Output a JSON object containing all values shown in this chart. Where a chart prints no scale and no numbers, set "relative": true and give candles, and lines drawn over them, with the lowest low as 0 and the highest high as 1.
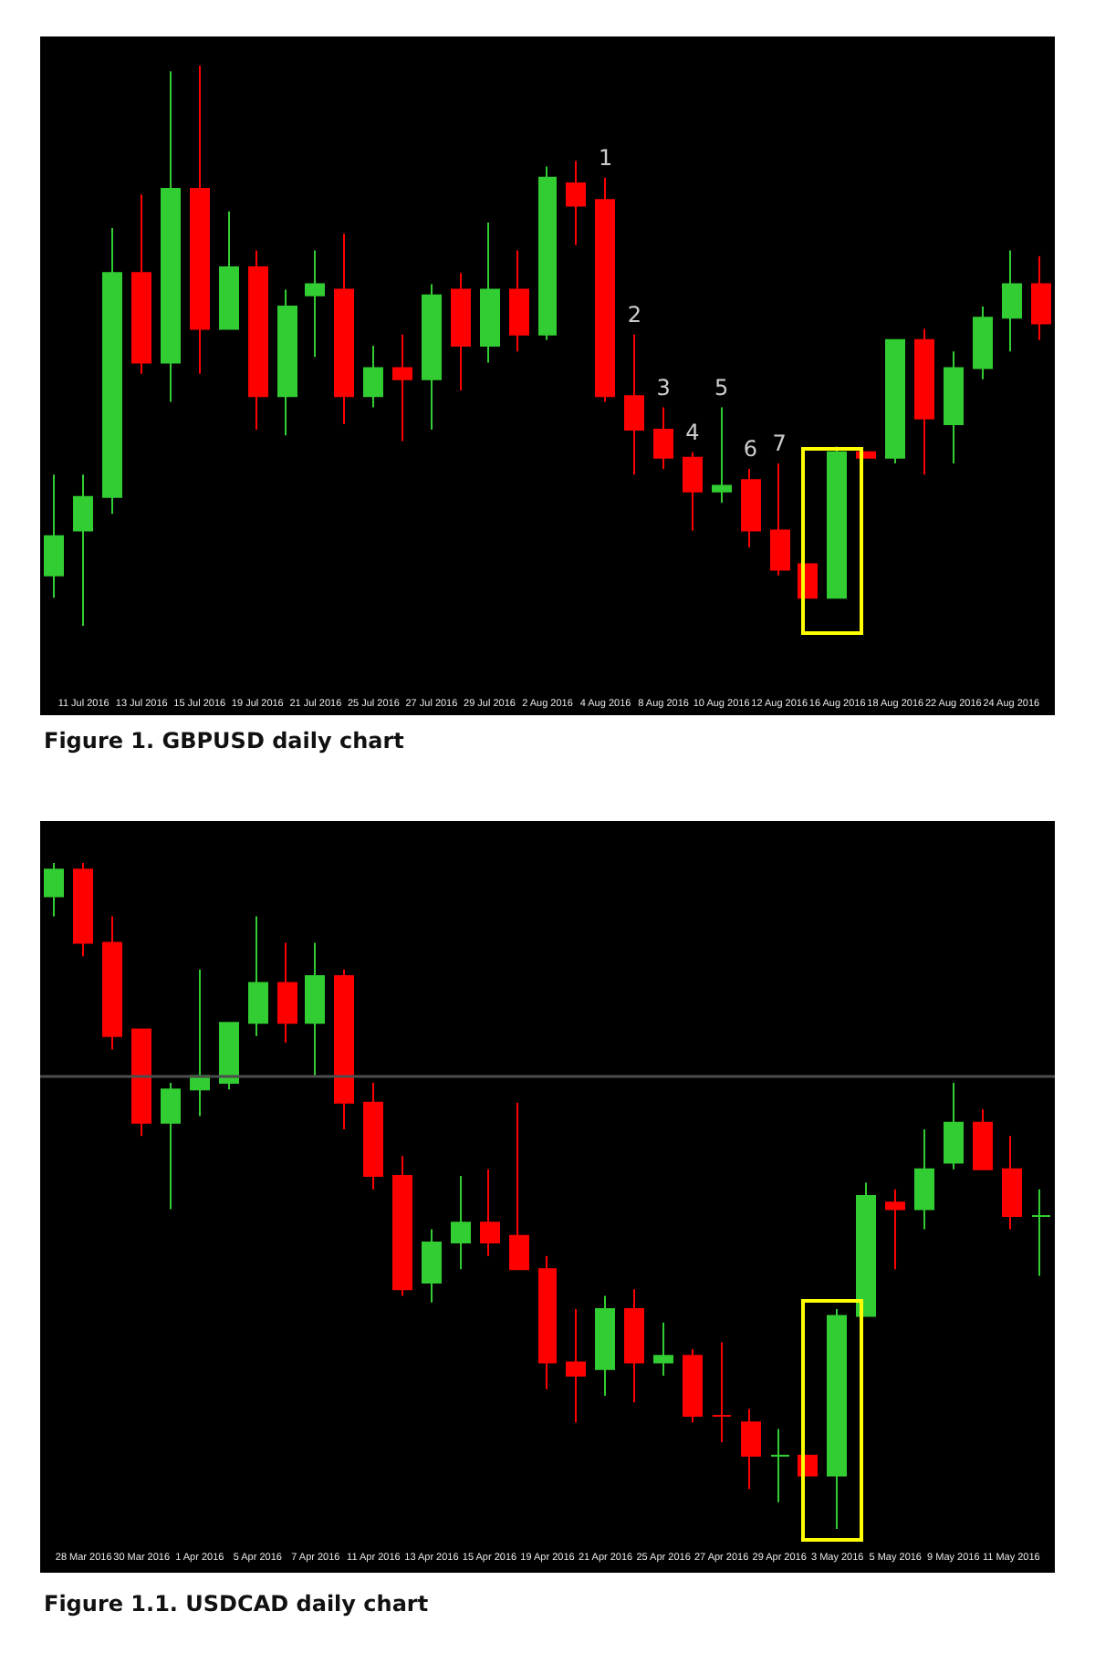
{
  "chart_data": [
    {
      "type": "candlestick",
      "title": "Figure 1. GBPUSD daily chart",
      "relative": true,
      "categories": [
        null,
        "11 Jul 2016",
        null,
        "13 Jul 2016",
        null,
        "15 Jul 2016",
        null,
        "19 Jul 2016",
        null,
        "21 Jul 2016",
        null,
        "25 Jul 2016",
        null,
        "27 Jul 2016",
        null,
        "29 Jul 2016",
        null,
        "2 Aug 2016",
        null,
        "4 Aug 2016",
        null,
        "8 Aug 2016",
        null,
        "10 Aug 2016",
        null,
        "12 Aug 2016",
        null,
        "16 Aug 2016",
        null,
        "18 Aug 2016",
        null,
        "22 Aug 2016",
        null,
        "24 Aug 2016",
        null
      ],
      "ohlc": [
        [
          0.09,
          0.27,
          0.05,
          0.16
        ],
        [
          0.17,
          0.27,
          0,
          0.23
        ],
        [
          0.23,
          0.71,
          0.2,
          0.63
        ],
        [
          0.63,
          0.77,
          0.45,
          0.47
        ],
        [
          0.47,
          0.99,
          0.4,
          0.78
        ],
        [
          0.78,
          1,
          0.45,
          0.53
        ],
        [
          0.53,
          0.74,
          0.53,
          0.64
        ],
        [
          0.64,
          0.67,
          0.35,
          0.41
        ],
        [
          0.41,
          0.6,
          0.34,
          0.57
        ],
        [
          0.59,
          0.67,
          0.48,
          0.61
        ],
        [
          0.6,
          0.7,
          0.36,
          0.41
        ],
        [
          0.41,
          0.5,
          0.39,
          0.46
        ],
        [
          0.46,
          0.52,
          0.33,
          0.44
        ],
        [
          0.44,
          0.61,
          0.35,
          0.59
        ],
        [
          0.6,
          0.63,
          0.42,
          0.5
        ],
        [
          0.5,
          0.72,
          0.47,
          0.6
        ],
        [
          0.6,
          0.67,
          0.49,
          0.52
        ],
        [
          0.52,
          0.82,
          0.51,
          0.8
        ],
        [
          0.79,
          0.83,
          0.68,
          0.75
        ],
        [
          0.76,
          0.8,
          0.4,
          0.41
        ],
        [
          0.41,
          0.52,
          0.27,
          0.35
        ],
        [
          0.35,
          0.39,
          0.28,
          0.3
        ],
        [
          0.3,
          0.31,
          0.17,
          0.24
        ],
        [
          0.24,
          0.39,
          0.22,
          0.25
        ],
        [
          0.26,
          0.28,
          0.14,
          0.17
        ],
        [
          0.17,
          0.29,
          0.09,
          0.1
        ],
        [
          0.11,
          0.11,
          0.05,
          0.05
        ],
        [
          0.05,
          0.32,
          0.05,
          0.31
        ],
        [
          0.31,
          0.31,
          0.3,
          0.3
        ],
        [
          0.3,
          0.51,
          0.29,
          0.51
        ],
        [
          0.51,
          0.53,
          0.27,
          0.37
        ],
        [
          0.36,
          0.49,
          0.29,
          0.46
        ],
        [
          0.46,
          0.57,
          0.44,
          0.55
        ],
        [
          0.55,
          0.67,
          0.49,
          0.61
        ],
        [
          0.61,
          0.66,
          0.51,
          0.54
        ]
      ],
      "colors": [
        "#32cd32",
        "#32cd32",
        "#32cd32",
        "#ff0000",
        "#32cd32",
        "#ff0000",
        "#32cd32",
        "#ff0000",
        "#32cd32",
        "#32cd32",
        "#ff0000",
        "#32cd32",
        "#ff0000",
        "#32cd32",
        "#ff0000",
        "#32cd32",
        "#ff0000",
        "#32cd32",
        "#ff0000",
        "#ff0000",
        "#ff0000",
        "#ff0000",
        "#ff0000",
        "#32cd32",
        "#ff0000",
        "#ff0000",
        "#ff0000",
        "#32cd32",
        "#ff0000",
        "#32cd32",
        "#ff0000",
        "#32cd32",
        "#32cd32",
        "#32cd32",
        "#ff0000"
      ],
      "value_labels": [
        null,
        null,
        null,
        null,
        null,
        null,
        null,
        null,
        null,
        null,
        null,
        null,
        null,
        null,
        null,
        null,
        null,
        null,
        null,
        "1",
        "2",
        "3",
        "4",
        "5",
        "6",
        "7",
        null,
        null,
        null,
        null,
        null,
        null,
        null,
        null,
        null
      ]
    },
    {
      "type": "candlestick",
      "title": "Figure 1.1. USDCAD daily chart",
      "relative": true,
      "categories": [
        null,
        "28 Mar 2016",
        null,
        "30 Mar 2016",
        null,
        "1 Apr 2016",
        null,
        "5 Apr 2016",
        null,
        "7 Apr 2016",
        null,
        "11 Apr 2016",
        null,
        "13 Apr 2016",
        null,
        "15 Apr 2016",
        null,
        "19 Apr 2016",
        null,
        "21 Apr 2016",
        null,
        "25 Apr 2016",
        null,
        "27 Apr 2016",
        null,
        "29 Apr 2016",
        null,
        "3 May 2016",
        null,
        "5 May 2016",
        null,
        "9 May 2016",
        null,
        "11 May 2016",
        null
      ],
      "ohlc": [
        [
          0.95,
          1,
          0.92,
          0.99
        ],
        [
          0.99,
          1,
          0.86,
          0.88
        ],
        [
          0.88,
          0.92,
          0.72,
          0.74
        ],
        [
          0.75,
          0.75,
          0.59,
          0.61
        ],
        [
          0.61,
          0.67,
          0.48,
          0.66
        ],
        [
          0.66,
          0.84,
          0.62,
          0.68
        ],
        [
          0.67,
          0.76,
          0.66,
          0.76
        ],
        [
          0.76,
          0.92,
          0.74,
          0.82
        ],
        [
          0.82,
          0.88,
          0.73,
          0.76
        ],
        [
          0.76,
          0.88,
          0.68,
          0.83
        ],
        [
          0.83,
          0.84,
          0.6,
          0.64
        ],
        [
          0.64,
          0.67,
          0.51,
          0.53
        ],
        [
          0.53,
          0.56,
          0.35,
          0.36
        ],
        [
          0.37,
          0.45,
          0.34,
          0.43
        ],
        [
          0.43,
          0.53,
          0.39,
          0.46
        ],
        [
          0.46,
          0.54,
          0.41,
          0.43
        ],
        [
          0.44,
          0.64,
          0.39,
          0.39
        ],
        [
          0.39,
          0.41,
          0.21,
          0.25
        ],
        [
          0.25,
          0.33,
          0.16,
          0.23
        ],
        [
          0.24,
          0.35,
          0.2,
          0.33
        ],
        [
          0.33,
          0.36,
          0.19,
          0.25
        ],
        [
          0.25,
          0.31,
          0.23,
          0.26
        ],
        [
          0.26,
          0.27,
          0.16,
          0.17
        ],
        [
          0.17,
          0.28,
          0.13,
          0.17
        ],
        [
          0.16,
          0.18,
          0.06,
          0.11
        ],
        [
          0.11,
          0.15,
          0.04,
          0.11
        ],
        [
          0.11,
          0.11,
          0.08,
          0.08
        ],
        [
          0.08,
          0.33,
          0,
          0.32
        ],
        [
          0.32,
          0.52,
          0.32,
          0.5
        ],
        [
          0.49,
          0.51,
          0.39,
          0.48
        ],
        [
          0.48,
          0.6,
          0.45,
          0.54
        ],
        [
          0.55,
          0.67,
          0.54,
          0.61
        ],
        [
          0.61,
          0.63,
          0.54,
          0.54
        ],
        [
          0.54,
          0.59,
          0.45,
          0.47
        ],
        [
          0.47,
          0.51,
          0.38,
          0.47
        ]
      ],
      "colors": [
        "#32cd32",
        "#ff0000",
        "#ff0000",
        "#ff0000",
        "#32cd32",
        "#32cd32",
        "#32cd32",
        "#32cd32",
        "#ff0000",
        "#32cd32",
        "#ff0000",
        "#ff0000",
        "#ff0000",
        "#32cd32",
        "#32cd32",
        "#ff0000",
        "#ff0000",
        "#ff0000",
        "#ff0000",
        "#32cd32",
        "#ff0000",
        "#32cd32",
        "#ff0000",
        "#ff0000",
        "#ff0000",
        "#32cd32",
        "#ff0000",
        "#32cd32",
        "#32cd32",
        "#ff0000",
        "#32cd32",
        "#32cd32",
        "#ff0000",
        "#ff0000",
        "#32cd32"
      ],
      "ref_lines": [
        {
          "axis": "y",
          "value": 0.68,
          "color": "#4d4d4d"
        }
      ]
    }
  ]
}
